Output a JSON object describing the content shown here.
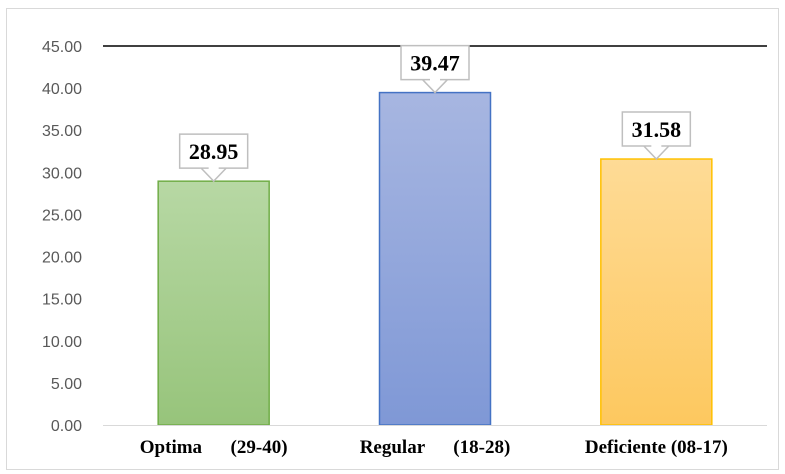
{
  "chart_data": {
    "type": "bar",
    "categories": [
      "Optima      (29-40)",
      "Regular      (18-28)",
      "Deficiente (08-17)"
    ],
    "values": [
      28.95,
      39.47,
      31.58
    ],
    "value_labels": [
      "28.95",
      "39.47",
      "31.58"
    ],
    "ylim": [
      0,
      45
    ],
    "yticks": [
      "0.00",
      "5.00",
      "10.00",
      "15.00",
      "20.00",
      "25.00",
      "30.00",
      "35.00",
      "40.00",
      "45.00"
    ],
    "grid": false,
    "legend": "none",
    "colors": {
      "bar_fills": [
        [
          "#b7d8a4",
          "#97c47b"
        ],
        [
          "#a7b6e1",
          "#7f98d6"
        ],
        [
          "#fedb96",
          "#fdc85f"
        ]
      ],
      "bar_strokes": [
        "#70ad47",
        "#4472c4",
        "#ffc000"
      ],
      "top_line": "#000000",
      "tick_text": "#595959",
      "axis": "#d9d9d9"
    }
  }
}
